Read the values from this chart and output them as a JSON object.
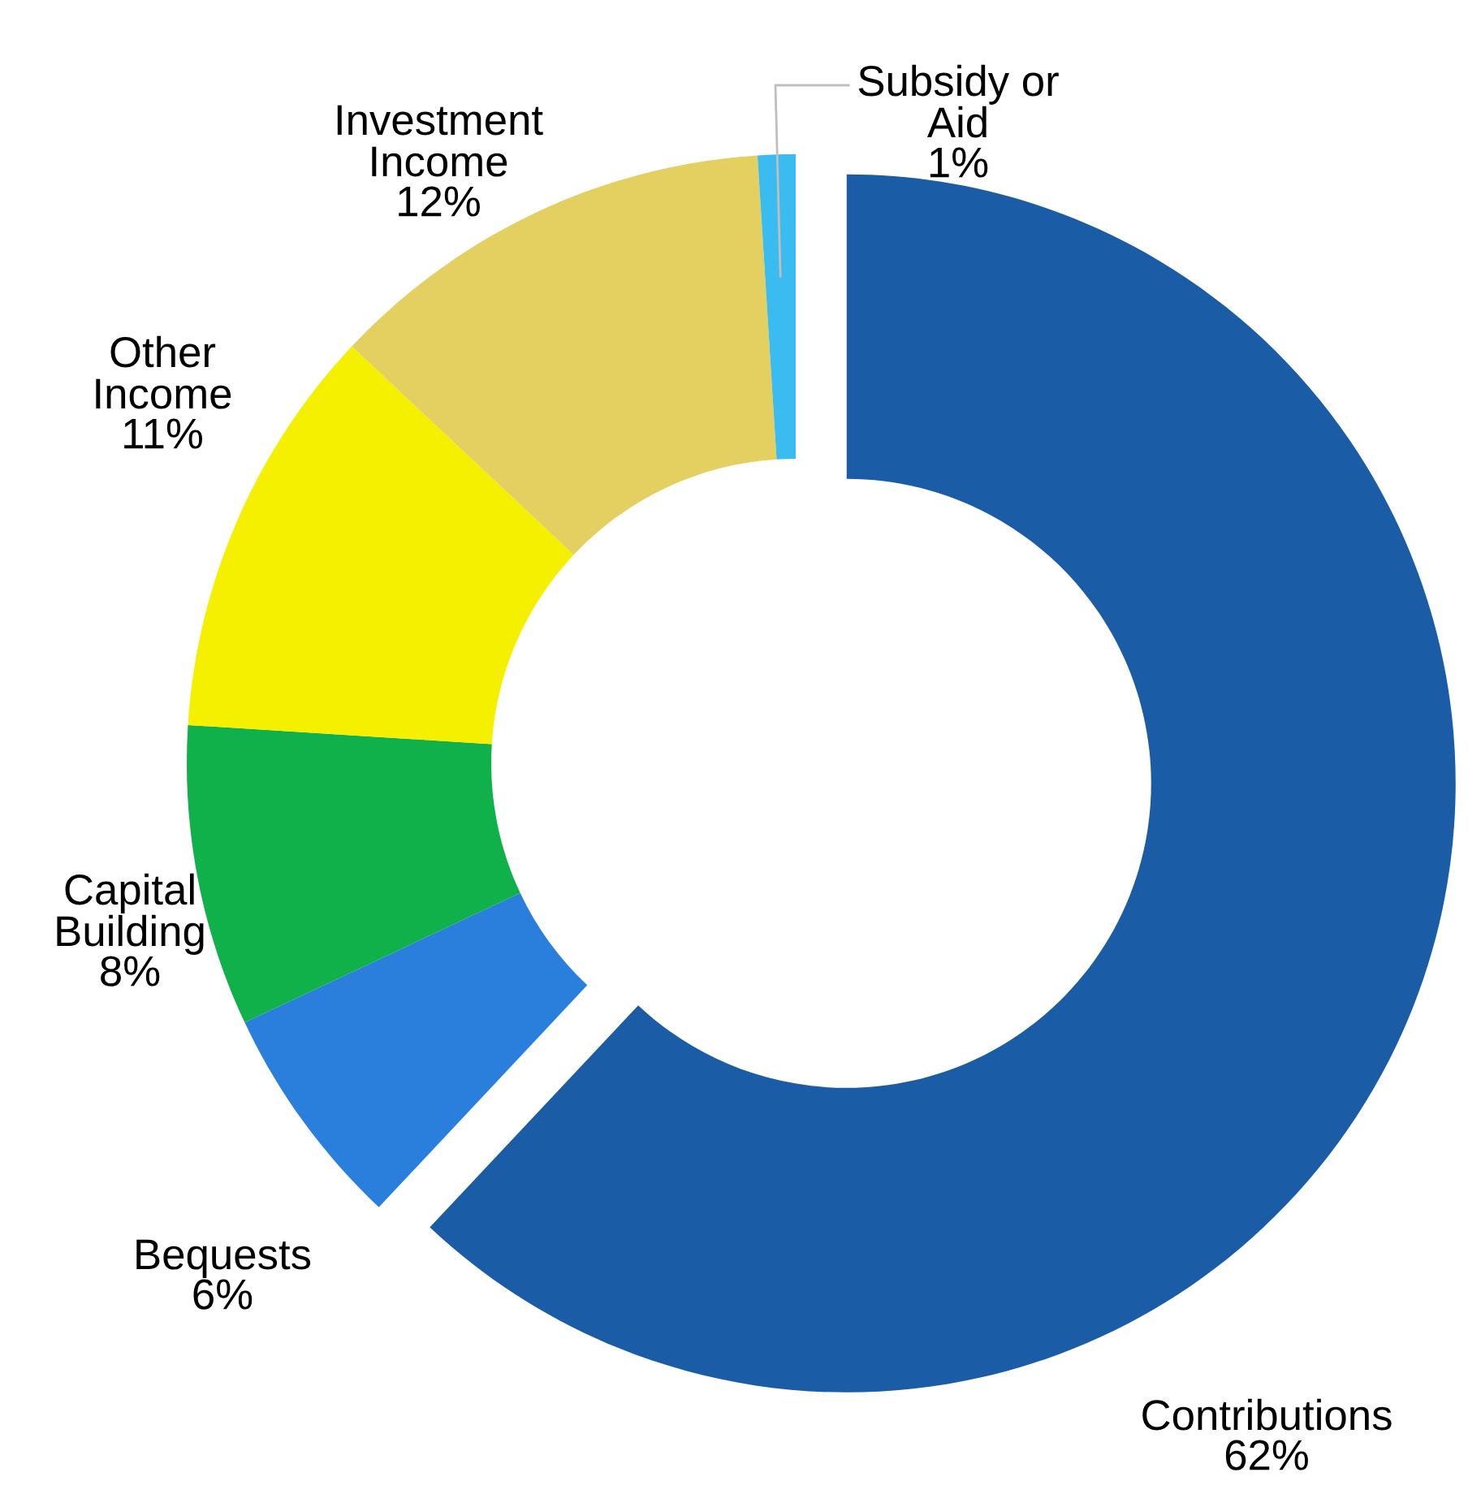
{
  "chart_data": {
    "type": "donut",
    "categories": [
      "Contributions",
      "Bequests",
      "Capital Building",
      "Other Income",
      "Investment Income",
      "Subsidy or Aid"
    ],
    "values": [
      62,
      6,
      8,
      11,
      12,
      1
    ],
    "value_labels": [
      "62%",
      "6%",
      "8%",
      "11%",
      "12%",
      "1%"
    ],
    "colors": [
      "#1a5ca6",
      "#2a7fdc",
      "#10b04a",
      "#f5f000",
      "#e4d060",
      "#3bbcf0"
    ]
  }
}
